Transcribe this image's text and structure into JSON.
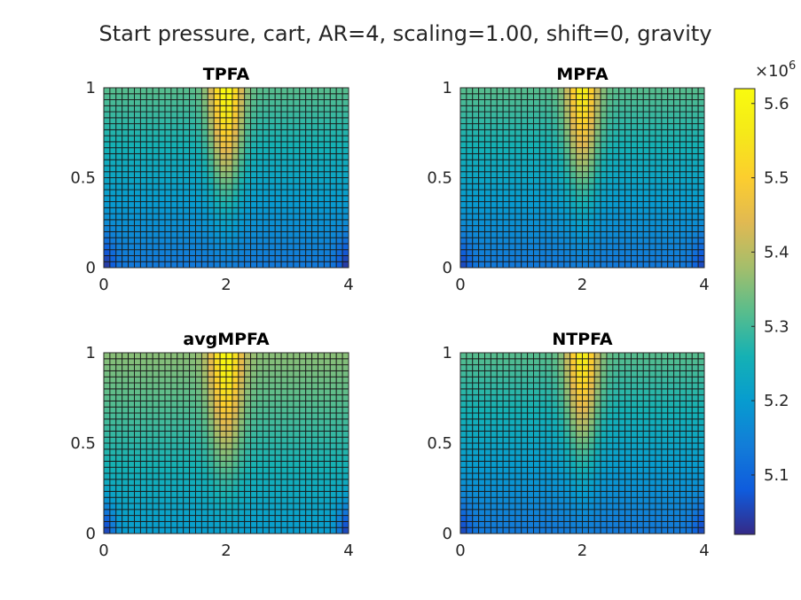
{
  "figure": {
    "suptitle": "Start pressure, cart, AR=4, scaling=1.00, shift=0, gravity"
  },
  "colorbar": {
    "exponent_base": "×10",
    "exponent_power": "6",
    "ticks": [
      "5.1",
      "5.2",
      "5.3",
      "5.4",
      "5.5",
      "5.6"
    ],
    "colormap": "parula"
  },
  "chart_data": [
    {
      "type": "heatmap",
      "title": "TPFA",
      "xlabel": "",
      "ylabel": "",
      "xlim": [
        0,
        4
      ],
      "ylim": [
        0,
        1
      ],
      "x_ticks": [
        "0",
        "2",
        "4"
      ],
      "y_ticks": [
        "0",
        "0.5",
        "1"
      ],
      "grid_cells": [
        40,
        30
      ],
      "value_unit_scale": 1000000,
      "clim": [
        5.02,
        5.62
      ],
      "field": {
        "base_min": 5.13,
        "base_max": 5.32,
        "peak_value": 5.62,
        "peak_x": 2.0,
        "peak_y": 1.0,
        "corner_min": 5.03
      }
    },
    {
      "type": "heatmap",
      "title": "MPFA",
      "xlabel": "",
      "ylabel": "",
      "xlim": [
        0,
        4
      ],
      "ylim": [
        0,
        1
      ],
      "x_ticks": [
        "0",
        "2",
        "4"
      ],
      "y_ticks": [
        "0",
        "0.5",
        "1"
      ],
      "grid_cells": [
        40,
        30
      ],
      "value_unit_scale": 1000000,
      "clim": [
        5.02,
        5.62
      ],
      "field": {
        "base_min": 5.13,
        "base_max": 5.32,
        "peak_value": 5.58,
        "peak_x": 2.0,
        "peak_y": 1.0,
        "corner_min": 5.05
      }
    },
    {
      "type": "heatmap",
      "title": "avgMPFA",
      "xlabel": "",
      "ylabel": "",
      "xlim": [
        0,
        4
      ],
      "ylim": [
        0,
        1
      ],
      "x_ticks": [
        "0",
        "2",
        "4"
      ],
      "y_ticks": [
        "0",
        "0.5",
        "1"
      ],
      "grid_cells": [
        40,
        30
      ],
      "value_unit_scale": 1000000,
      "clim": [
        5.02,
        5.62
      ],
      "field": {
        "base_min": 5.2,
        "base_max": 5.36,
        "peak_value": 5.62,
        "peak_x": 2.0,
        "peak_y": 1.0,
        "corner_min": 5.04
      }
    },
    {
      "type": "heatmap",
      "title": "NTPFA",
      "xlabel": "",
      "ylabel": "",
      "xlim": [
        0,
        4
      ],
      "ylim": [
        0,
        1
      ],
      "x_ticks": [
        "0",
        "2",
        "4"
      ],
      "y_ticks": [
        "0",
        "0.5",
        "1"
      ],
      "grid_cells": [
        40,
        30
      ],
      "value_unit_scale": 1000000,
      "clim": [
        5.02,
        5.62
      ],
      "field": {
        "base_min": 5.13,
        "base_max": 5.32,
        "peak_value": 5.58,
        "peak_x": 2.0,
        "peak_y": 1.0,
        "corner_min": 5.05
      }
    }
  ]
}
